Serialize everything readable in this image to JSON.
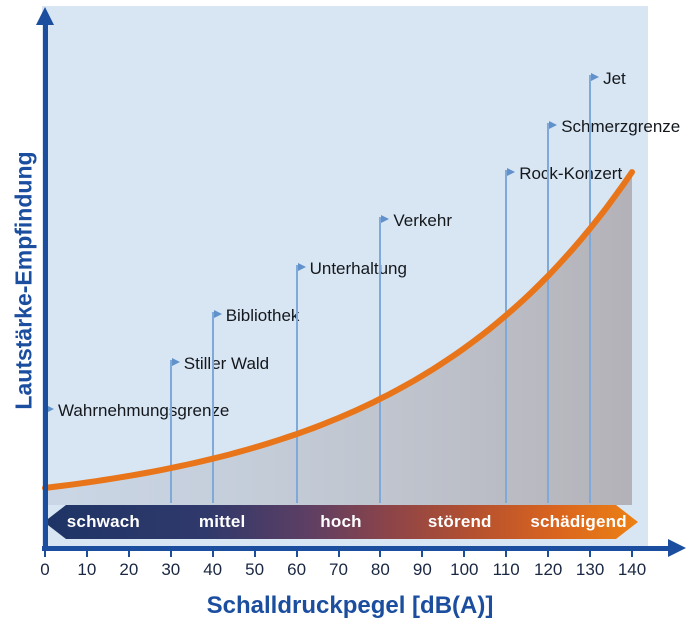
{
  "axes": {
    "y_label": "Lautstärke-Empfindung",
    "x_label": "Schalldruckpegel [dB(A)]"
  },
  "chart_data": {
    "type": "line",
    "title": "",
    "xlabel": "Schalldruckpegel [dB(A)]",
    "ylabel": "Lautstärke-Empfindung",
    "xlim": [
      0,
      140
    ],
    "x_ticks": [
      0,
      10,
      20,
      30,
      40,
      50,
      60,
      70,
      80,
      90,
      100,
      110,
      120,
      130,
      140
    ],
    "grid": false,
    "legend": "none",
    "curve": {
      "name": "Lautstärke-Empfindung",
      "shape": "exponential",
      "x_db": [
        0,
        20,
        40,
        60,
        80,
        100,
        120,
        140
      ],
      "y_relative_percent": [
        16,
        19,
        23,
        30,
        39,
        54,
        74,
        100
      ],
      "stroke_color": "#e8751a",
      "area_fill": "gray gradient under curve"
    },
    "annotations": [
      {
        "db": 0,
        "label": "Wahrnehmungsgrenze"
      },
      {
        "db": 30,
        "label": "Stiller Wald"
      },
      {
        "db": 40,
        "label": "Bibliothek"
      },
      {
        "db": 60,
        "label": "Unterhaltung"
      },
      {
        "db": 80,
        "label": "Verkehr"
      },
      {
        "db": 110,
        "label": "Rock-Konzert"
      },
      {
        "db": 120,
        "label": "Schmerzgrenze"
      },
      {
        "db": 130,
        "label": "Jet"
      }
    ],
    "category_band": {
      "labels": [
        "schwach",
        "mittel",
        "hoch",
        "störend",
        "schädigend"
      ],
      "gradient_start": "#1e3466",
      "gradient_end": "#ec8114"
    }
  },
  "colors": {
    "plot_background": "#d8e5f3",
    "axis_blue": "#1b4e9f",
    "curve_orange": "#e8751a",
    "marker_line_blue": "#7fa9d9",
    "marker_flag_blue": "#6091cb",
    "tick_text": "#1a2742",
    "marker_text": "#14181c",
    "band_text": "#ffffff"
  }
}
